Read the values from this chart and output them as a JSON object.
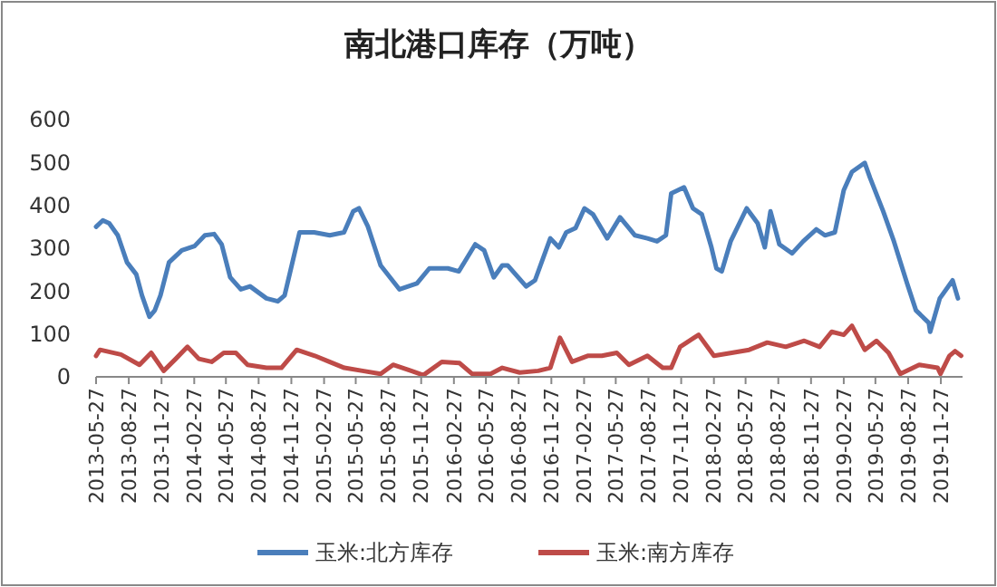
{
  "chart_data": {
    "type": "line",
    "title": "南北港口库存（万吨）",
    "xlim": [
      "2013-05-27",
      "2020-01-27"
    ],
    "xticks": [
      {
        "value": "2013-05-27",
        "label": "2013-05-27"
      },
      {
        "value": "2013-08-27",
        "label": "2013-08-27"
      },
      {
        "value": "2013-11-27",
        "label": "2013-11-27"
      },
      {
        "value": "2014-02-27",
        "label": "2014-02-27"
      },
      {
        "value": "2014-05-27",
        "label": "2014-05-27"
      },
      {
        "value": "2014-08-27",
        "label": "2014-08-27"
      },
      {
        "value": "2014-11-27",
        "label": "2014-11-27"
      },
      {
        "value": "2015-02-27",
        "label": "2015-02-27"
      },
      {
        "value": "2015-05-27",
        "label": "2015-05-27"
      },
      {
        "value": "2015-08-27",
        "label": "2015-08-27"
      },
      {
        "value": "2015-11-27",
        "label": "2015-11-27"
      },
      {
        "value": "2016-02-27",
        "label": "2016-02-27"
      },
      {
        "value": "2016-05-27",
        "label": "2016-05-27"
      },
      {
        "value": "2016-08-27",
        "label": "2016-08-27"
      },
      {
        "value": "2016-11-27",
        "label": "2016-11-27"
      },
      {
        "value": "2017-02-27",
        "label": "2017-02-27"
      },
      {
        "value": "2017-05-27",
        "label": "2017-05-27"
      },
      {
        "value": "2017-08-27",
        "label": "2017-08-27"
      },
      {
        "value": "2017-11-27",
        "label": "2017-11-27"
      },
      {
        "value": "2018-02-27",
        "label": "2018-02-27"
      },
      {
        "value": "2018-05-27",
        "label": "2018-05-27"
      },
      {
        "value": "2018-08-27",
        "label": "2018-08-27"
      },
      {
        "value": "2018-11-27",
        "label": "2018-11-27"
      },
      {
        "value": "2019-02-27",
        "label": "2019-02-27"
      },
      {
        "value": "2019-05-27",
        "label": "2019-05-27"
      },
      {
        "value": "2019-08-27",
        "label": "2019-08-27"
      },
      {
        "value": "2019-11-27",
        "label": "2019-11-27"
      }
    ],
    "ylim": [
      0,
      600
    ],
    "yticks": [
      0,
      100,
      200,
      300,
      400,
      500,
      600
    ],
    "grid": false,
    "legend": "bottom",
    "marker": "none",
    "line_style": "solid",
    "series": [
      {
        "name": "玉米:北方库存",
        "color": "#4a7ebb",
        "x": [
          "2013-05-27",
          "2013-06-15",
          "2013-07-03",
          "2013-07-27",
          "2013-08-22",
          "2013-09-17",
          "2013-10-03",
          "2013-10-24",
          "2013-11-08",
          "2013-11-24",
          "2013-12-18",
          "2014-01-23",
          "2014-02-28",
          "2014-03-29",
          "2014-04-24",
          "2014-05-15",
          "2014-06-08",
          "2014-07-08",
          "2014-08-03",
          "2014-09-18",
          "2014-10-20",
          "2014-11-08",
          "2014-11-24",
          "2014-12-20",
          "2015-01-30",
          "2015-03-15",
          "2015-04-24",
          "2015-05-20",
          "2015-06-05",
          "2015-06-30",
          "2015-08-05",
          "2015-09-27",
          "2015-11-15",
          "2015-12-20",
          "2016-02-10",
          "2016-03-12",
          "2016-04-27",
          "2016-05-22",
          "2016-06-18",
          "2016-07-12",
          "2016-07-27",
          "2016-09-17",
          "2016-10-12",
          "2016-11-24",
          "2016-12-18",
          "2017-01-08",
          "2017-02-03",
          "2017-02-28",
          "2017-03-24",
          "2017-05-03",
          "2017-06-08",
          "2017-07-20",
          "2017-08-24",
          "2017-09-20",
          "2017-10-15",
          "2017-10-30",
          "2017-12-05",
          "2017-12-30",
          "2018-01-24",
          "2018-02-20",
          "2018-03-06",
          "2018-03-21",
          "2018-04-15",
          "2018-05-30",
          "2018-06-30",
          "2018-07-20",
          "2018-08-05",
          "2018-08-30",
          "2018-10-05",
          "2018-11-05",
          "2018-12-12",
          "2019-01-05",
          "2019-02-02",
          "2019-02-27",
          "2019-03-22",
          "2019-04-27",
          "2019-05-12",
          "2019-06-18",
          "2019-07-18",
          "2019-08-24",
          "2019-09-18",
          "2019-10-24",
          "2019-10-28",
          "2019-11-24",
          "2019-12-30",
          "2020-01-14"
        ],
        "values": [
          350,
          365,
          358,
          330,
          267,
          239,
          190,
          140,
          155,
          190,
          267,
          295,
          305,
          330,
          333,
          309,
          232,
          204,
          211,
          183,
          176,
          190,
          246,
          337,
          337,
          330,
          337,
          386,
          393,
          351,
          260,
          204,
          218,
          253,
          253,
          246,
          309,
          295,
          232,
          260,
          260,
          211,
          225,
          323,
          302,
          337,
          347,
          393,
          379,
          323,
          372,
          330,
          323,
          316,
          330,
          428,
          442,
          393,
          379,
          302,
          253,
          246,
          316,
          393,
          358,
          302,
          386,
          309,
          288,
          316,
          344,
          330,
          337,
          435,
          478,
          499,
          464,
          386,
          316,
          218,
          155,
          126,
          105,
          183,
          225,
          183
        ]
      },
      {
        "name": "玉米:南方库存",
        "color": "#be4b48",
        "x": [
          "2013-05-27",
          "2013-06-07",
          "2013-08-05",
          "2013-09-26",
          "2013-10-29",
          "2013-12-03",
          "2014-01-06",
          "2014-02-08",
          "2014-03-12",
          "2014-04-17",
          "2014-05-21",
          "2014-06-24",
          "2014-07-27",
          "2014-09-18",
          "2014-10-30",
          "2014-12-12",
          "2015-02-01",
          "2015-03-14",
          "2015-04-25",
          "2015-06-15",
          "2015-08-05",
          "2015-09-09",
          "2015-10-30",
          "2015-12-03",
          "2016-01-24",
          "2016-03-14",
          "2016-04-18",
          "2016-06-09",
          "2016-07-12",
          "2016-08-30",
          "2016-10-21",
          "2016-11-24",
          "2016-12-21",
          "2017-01-24",
          "2017-03-09",
          "2017-04-18",
          "2017-05-30",
          "2017-07-03",
          "2017-08-24",
          "2017-10-06",
          "2017-10-30",
          "2017-11-24",
          "2018-01-15",
          "2018-02-27",
          "2018-04-18",
          "2018-06-06",
          "2018-07-27",
          "2018-09-17",
          "2018-11-08",
          "2018-12-21",
          "2019-01-24",
          "2019-02-27",
          "2019-03-22",
          "2019-04-27",
          "2019-05-30",
          "2019-07-03",
          "2019-08-05",
          "2019-09-27",
          "2019-11-18",
          "2019-11-26",
          "2019-12-21",
          "2020-01-06",
          "2020-01-23"
        ],
        "values": [
          49,
          63,
          52,
          28,
          56,
          14,
          42,
          70,
          42,
          35,
          56,
          56,
          28,
          21,
          21,
          63,
          49,
          35,
          21,
          14,
          7,
          28,
          14,
          4,
          35,
          32,
          7,
          7,
          21,
          10,
          14,
          21,
          91,
          35,
          49,
          49,
          56,
          28,
          49,
          21,
          21,
          70,
          98,
          49,
          56,
          63,
          80,
          70,
          84,
          70,
          105,
          98,
          119,
          63,
          84,
          56,
          7,
          28,
          21,
          7,
          49,
          60,
          49
        ]
      }
    ]
  }
}
